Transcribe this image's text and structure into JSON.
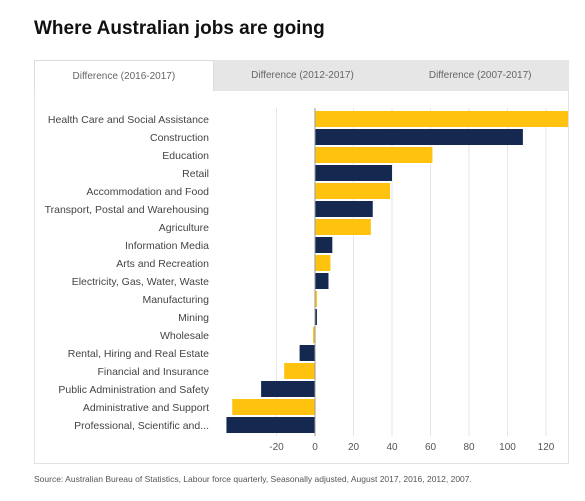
{
  "header": {
    "title": "Where Australian jobs are going"
  },
  "tabs": [
    {
      "label": "Difference (2016-2017)",
      "active": true
    },
    {
      "label": "Difference (2012-2017)",
      "active": false
    },
    {
      "label": "Difference (2007-2017)",
      "active": false
    }
  ],
  "footer": {
    "source": "Source: Australian Bureau of Statistics, Labour force quarterly, Seasonally adjusted, August 2017, 2016, 2012, 2007."
  },
  "colors": {
    "yellow": "#ffc20e",
    "navy": "#142850"
  },
  "chart_data": {
    "type": "bar",
    "orientation": "horizontal",
    "categories": [
      "Health Care and Social Assistance",
      "Construction",
      "Education",
      "Retail",
      "Accommodation and Food",
      "Transport, Postal and Warehousing",
      "Agriculture",
      "Information Media",
      "Arts and Recreation",
      "Electricity, Gas, Water, Waste",
      "Manufacturing",
      "Mining",
      "Wholesale",
      "Rental, Hiring and Real Estate",
      "Financial and Insurance",
      "Public Administration and Safety",
      "Administrative and Support",
      "Professional, Scientific and..."
    ],
    "values": [
      138,
      108,
      61,
      40,
      39,
      30,
      29,
      9,
      8,
      7,
      1,
      1,
      -1,
      -8,
      -16,
      -28,
      -43,
      -46
    ],
    "bar_colors": [
      "yellow",
      "navy",
      "yellow",
      "navy",
      "yellow",
      "navy",
      "yellow",
      "navy",
      "yellow",
      "navy",
      "yellow",
      "navy",
      "yellow",
      "navy",
      "yellow",
      "navy",
      "yellow",
      "navy"
    ],
    "xticks": [
      -20,
      0,
      20,
      40,
      60,
      80,
      100,
      120
    ],
    "xlim": [
      -46,
      138
    ],
    "grid": true
  }
}
